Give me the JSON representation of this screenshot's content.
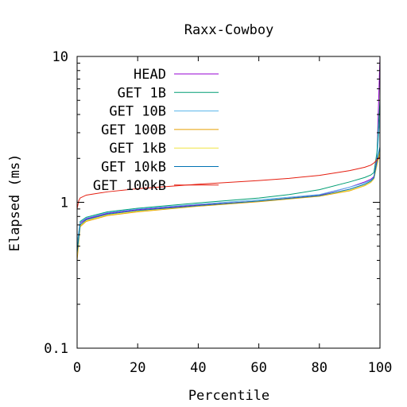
{
  "chart_data": {
    "type": "line",
    "title": "Raxx-Cowboy",
    "xlabel": "Percentile",
    "ylabel": "Elapsed (ms)",
    "xlim": [
      0,
      100
    ],
    "ylim": [
      0.1,
      10
    ],
    "yscale": "log",
    "grid": false,
    "legend_position": "top-left",
    "x_ticks": [
      0,
      20,
      40,
      60,
      80,
      100
    ],
    "x_tick_labels": [
      "0",
      "20",
      "40",
      "60",
      "80",
      "100"
    ],
    "y_ticks": [
      0.1,
      1,
      10
    ],
    "y_tick_labels": [
      "0.1",
      "1",
      "10"
    ],
    "series": [
      {
        "name": "HEAD",
        "color": "#9400d3",
        "points": [
          [
            0,
            0.5
          ],
          [
            1,
            0.72
          ],
          [
            3,
            0.77
          ],
          [
            10,
            0.84
          ],
          [
            20,
            0.89
          ],
          [
            40,
            0.96
          ],
          [
            60,
            1.02
          ],
          [
            80,
            1.12
          ],
          [
            90,
            1.27
          ],
          [
            95,
            1.38
          ],
          [
            97,
            1.44
          ],
          [
            98,
            1.5
          ],
          [
            99,
            2.0
          ],
          [
            100,
            10.0
          ]
        ]
      },
      {
        "name": "GET 1B",
        "color": "#009e73",
        "points": [
          [
            0,
            0.48
          ],
          [
            1,
            0.74
          ],
          [
            3,
            0.79
          ],
          [
            10,
            0.86
          ],
          [
            20,
            0.91
          ],
          [
            40,
            0.99
          ],
          [
            60,
            1.07
          ],
          [
            70,
            1.13
          ],
          [
            80,
            1.22
          ],
          [
            90,
            1.38
          ],
          [
            95,
            1.48
          ],
          [
            97,
            1.54
          ],
          [
            98,
            1.6
          ],
          [
            99,
            2.2
          ],
          [
            100,
            5.0
          ]
        ]
      },
      {
        "name": "GET 10B",
        "color": "#56b4e9",
        "points": [
          [
            0,
            0.52
          ],
          [
            1,
            0.73
          ],
          [
            3,
            0.78
          ],
          [
            10,
            0.85
          ],
          [
            20,
            0.9
          ],
          [
            40,
            0.97
          ],
          [
            60,
            1.04
          ],
          [
            80,
            1.13
          ],
          [
            90,
            1.27
          ],
          [
            95,
            1.36
          ],
          [
            97,
            1.42
          ],
          [
            98,
            1.48
          ],
          [
            99,
            1.9
          ],
          [
            100,
            4.0
          ]
        ]
      },
      {
        "name": "GET 100B",
        "color": "#e69f00",
        "points": [
          [
            0,
            0.4
          ],
          [
            1,
            0.68
          ],
          [
            3,
            0.74
          ],
          [
            10,
            0.81
          ],
          [
            20,
            0.86
          ],
          [
            40,
            0.94
          ],
          [
            60,
            1.01
          ],
          [
            80,
            1.1
          ],
          [
            90,
            1.2
          ],
          [
            95,
            1.3
          ],
          [
            97,
            1.37
          ],
          [
            98,
            1.45
          ],
          [
            99,
            1.8
          ],
          [
            100,
            2.2
          ]
        ]
      },
      {
        "name": "GET 1kB",
        "color": "#f0e442",
        "points": [
          [
            0,
            0.43
          ],
          [
            1,
            0.69
          ],
          [
            3,
            0.75
          ],
          [
            10,
            0.82
          ],
          [
            20,
            0.87
          ],
          [
            40,
            0.95
          ],
          [
            60,
            1.02
          ],
          [
            80,
            1.11
          ],
          [
            90,
            1.21
          ],
          [
            95,
            1.31
          ],
          [
            97,
            1.38
          ],
          [
            98,
            1.46
          ],
          [
            99,
            1.85
          ],
          [
            100,
            2.3
          ]
        ]
      },
      {
        "name": "GET 10kB",
        "color": "#0072b2",
        "points": [
          [
            0,
            0.45
          ],
          [
            1,
            0.7
          ],
          [
            3,
            0.76
          ],
          [
            10,
            0.83
          ],
          [
            20,
            0.88
          ],
          [
            40,
            0.95
          ],
          [
            60,
            1.02
          ],
          [
            80,
            1.11
          ],
          [
            90,
            1.23
          ],
          [
            95,
            1.33
          ],
          [
            97,
            1.4
          ],
          [
            98,
            1.47
          ],
          [
            99,
            1.9
          ],
          [
            100,
            2.4
          ]
        ]
      },
      {
        "name": "GET 100kB",
        "color": "#e51e10",
        "points": [
          [
            0,
            0.9
          ],
          [
            0.5,
            1.02
          ],
          [
            1,
            1.07
          ],
          [
            3,
            1.12
          ],
          [
            10,
            1.18
          ],
          [
            20,
            1.24
          ],
          [
            40,
            1.33
          ],
          [
            60,
            1.41
          ],
          [
            70,
            1.46
          ],
          [
            80,
            1.53
          ],
          [
            90,
            1.65
          ],
          [
            95,
            1.74
          ],
          [
            97,
            1.8
          ],
          [
            98,
            1.86
          ],
          [
            99,
            1.95
          ],
          [
            100,
            2.05
          ]
        ]
      }
    ]
  }
}
